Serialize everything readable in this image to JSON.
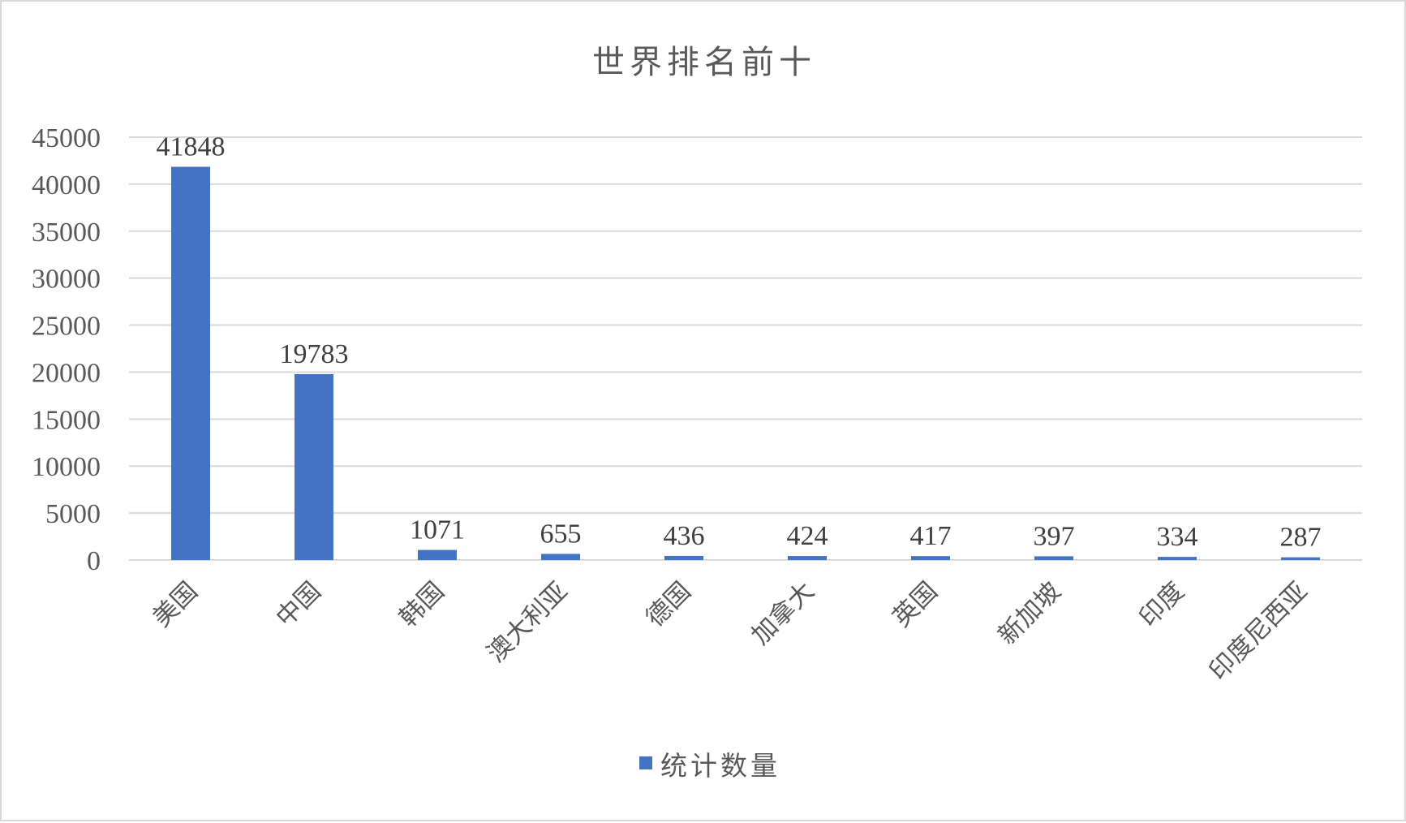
{
  "chart_data": {
    "type": "bar",
    "title": "世界排名前十",
    "categories": [
      "美国",
      "中国",
      "韩国",
      "澳大利亚",
      "德国",
      "加拿大",
      "英国",
      "新加坡",
      "印度",
      "印度尼西亚"
    ],
    "series": [
      {
        "name": "统计数量",
        "values": [
          41848,
          19783,
          1071,
          655,
          436,
          424,
          417,
          397,
          334,
          287
        ],
        "color": "#4472c4"
      }
    ],
    "ylim": [
      0,
      45000
    ],
    "yticks": [
      0,
      5000,
      10000,
      15000,
      20000,
      25000,
      30000,
      35000,
      40000,
      45000
    ],
    "xlabel": "",
    "ylabel": "",
    "grid": true,
    "data_labels": true,
    "legend_position": "bottom",
    "colors": {
      "gridline": "#d9d9d9",
      "text": "#595959",
      "bar": "#4472c4"
    }
  }
}
